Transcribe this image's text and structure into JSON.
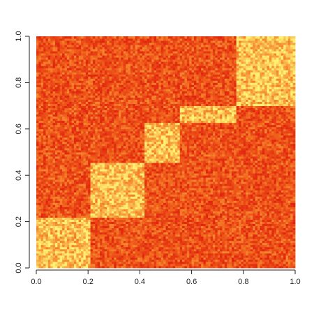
{
  "chart_data": {
    "type": "heatmap",
    "title": "",
    "xlabel": "",
    "ylabel": "",
    "xlim": [
      0,
      1
    ],
    "ylim": [
      0,
      1
    ],
    "grid": false,
    "legend": "none",
    "x_ticks": [
      {
        "value": 0.0,
        "label": "0.0"
      },
      {
        "value": 0.2,
        "label": "0.2"
      },
      {
        "value": 0.4,
        "label": "0.4"
      },
      {
        "value": 0.6,
        "label": "0.6"
      },
      {
        "value": 0.8,
        "label": "0.8"
      },
      {
        "value": 1.0,
        "label": "1.0"
      }
    ],
    "y_ticks": [
      {
        "value": 0.0,
        "label": "0.0"
      },
      {
        "value": 0.2,
        "label": "0.2"
      },
      {
        "value": 0.4,
        "label": "0.4"
      },
      {
        "value": 0.6,
        "label": "0.6"
      },
      {
        "value": 0.8,
        "label": "0.8"
      },
      {
        "value": 1.0,
        "label": "1.0"
      }
    ],
    "colors": {
      "background_mean": "#f05a1e",
      "high_block_mean": "#f9df2e",
      "low": "#e0200e",
      "high": "#fff070"
    },
    "matrix_background_level": 0.3,
    "blocks": [
      {
        "x": [
          0.0,
          0.205
        ],
        "y": [
          0.0,
          0.215
        ],
        "level": 0.8
      },
      {
        "x": [
          0.205,
          0.415
        ],
        "y": [
          0.215,
          0.455
        ],
        "level": 0.8
      },
      {
        "x": [
          0.415,
          0.555
        ],
        "y": [
          0.455,
          0.625
        ],
        "level": 0.8
      },
      {
        "x": [
          0.555,
          0.77
        ],
        "y": [
          0.625,
          0.7
        ],
        "level": 0.8
      },
      {
        "x": [
          0.77,
          1.0
        ],
        "y": [
          0.7,
          1.0
        ],
        "level": 0.8
      }
    ]
  }
}
